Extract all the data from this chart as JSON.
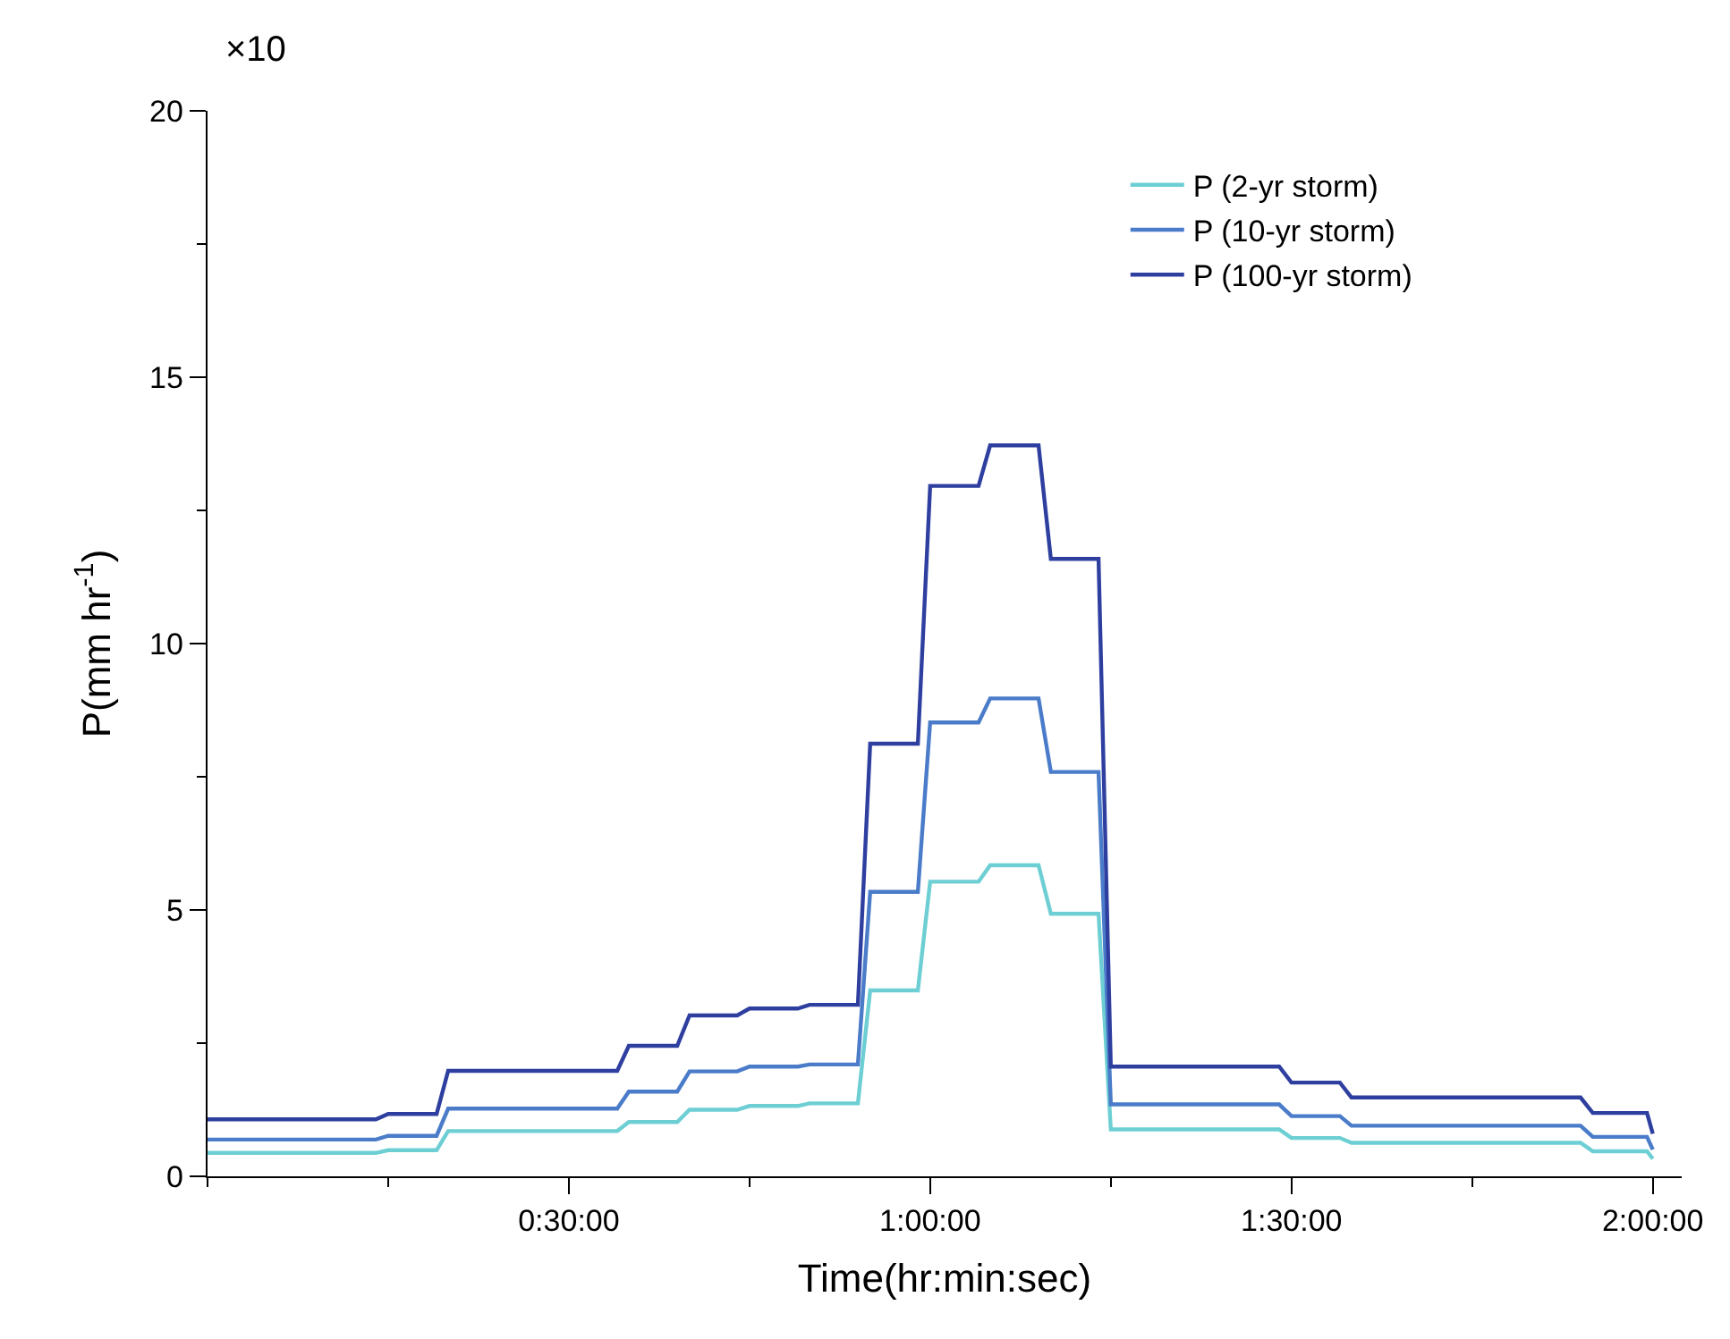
{
  "chart_data": {
    "type": "line",
    "xlabel": "Time(hr:min:sec)",
    "ylabel": "P(mm hr$^{-1}$)",
    "annotations": [
      "×10"
    ],
    "x": [
      0,
      0.233,
      0.25,
      0.317,
      0.333,
      0.567,
      0.583,
      0.65,
      0.667,
      0.733,
      0.75,
      0.817,
      0.833,
      0.9,
      0.917,
      0.983,
      1.0,
      1.067,
      1.083,
      1.15,
      1.167,
      1.233,
      1.25,
      1.483,
      1.5,
      1.567,
      1.583,
      1.9,
      1.917,
      1.992,
      2.0
    ],
    "series": [
      {
        "name": "P (2-yr storm)",
        "color": "#6dcfd3",
        "values": [
          0.44,
          0.44,
          0.49,
          0.49,
          0.85,
          0.85,
          1.02,
          1.02,
          1.25,
          1.25,
          1.32,
          1.32,
          1.37,
          1.37,
          3.49,
          3.49,
          5.53,
          5.53,
          5.84,
          5.84,
          4.93,
          4.93,
          0.88,
          0.88,
          0.72,
          0.72,
          0.63,
          0.63,
          0.47,
          0.47,
          0.33
        ]
      },
      {
        "name": "P (10-yr storm)",
        "color": "#4a7cc9",
        "values": [
          0.69,
          0.69,
          0.76,
          0.76,
          1.27,
          1.27,
          1.59,
          1.59,
          1.97,
          1.97,
          2.06,
          2.06,
          2.1,
          2.1,
          5.34,
          5.34,
          8.52,
          8.52,
          8.97,
          8.97,
          7.59,
          7.59,
          1.35,
          1.35,
          1.13,
          1.13,
          0.95,
          0.95,
          0.74,
          0.74,
          0.5
        ]
      },
      {
        "name": "P (100-yr storm)",
        "color": "#2e3fa0",
        "values": [
          1.07,
          1.07,
          1.17,
          1.17,
          1.98,
          1.98,
          2.45,
          2.45,
          3.02,
          3.02,
          3.15,
          3.15,
          3.22,
          3.22,
          8.12,
          8.12,
          12.96,
          12.96,
          13.72,
          13.72,
          11.59,
          11.59,
          2.06,
          2.06,
          1.76,
          1.76,
          1.48,
          1.48,
          1.19,
          1.19,
          0.8
        ]
      }
    ],
    "xlim": [
      0,
      2.04
    ],
    "xticks": [
      {
        "value": 0,
        "label": null
      },
      {
        "value": 0.25,
        "label": null
      },
      {
        "value": 0.5,
        "label": "0:30:00"
      },
      {
        "value": 0.75,
        "label": null
      },
      {
        "value": 1,
        "label": "1:00:00"
      },
      {
        "value": 1.25,
        "label": null
      },
      {
        "value": 1.5,
        "label": "1:30:00"
      },
      {
        "value": 1.75,
        "label": null
      },
      {
        "value": 2,
        "label": "2:00:00"
      }
    ],
    "ylim": [
      0,
      20
    ],
    "yticks": [
      0,
      {
        "value": 2.5,
        "label": null
      },
      5,
      {
        "value": 7.5,
        "label": null
      },
      10,
      {
        "value": 12.5,
        "label": null
      },
      15,
      {
        "value": 17.5,
        "label": null
      },
      20
    ],
    "legend": "top right",
    "marker": "none",
    "line_style": "solid"
  }
}
